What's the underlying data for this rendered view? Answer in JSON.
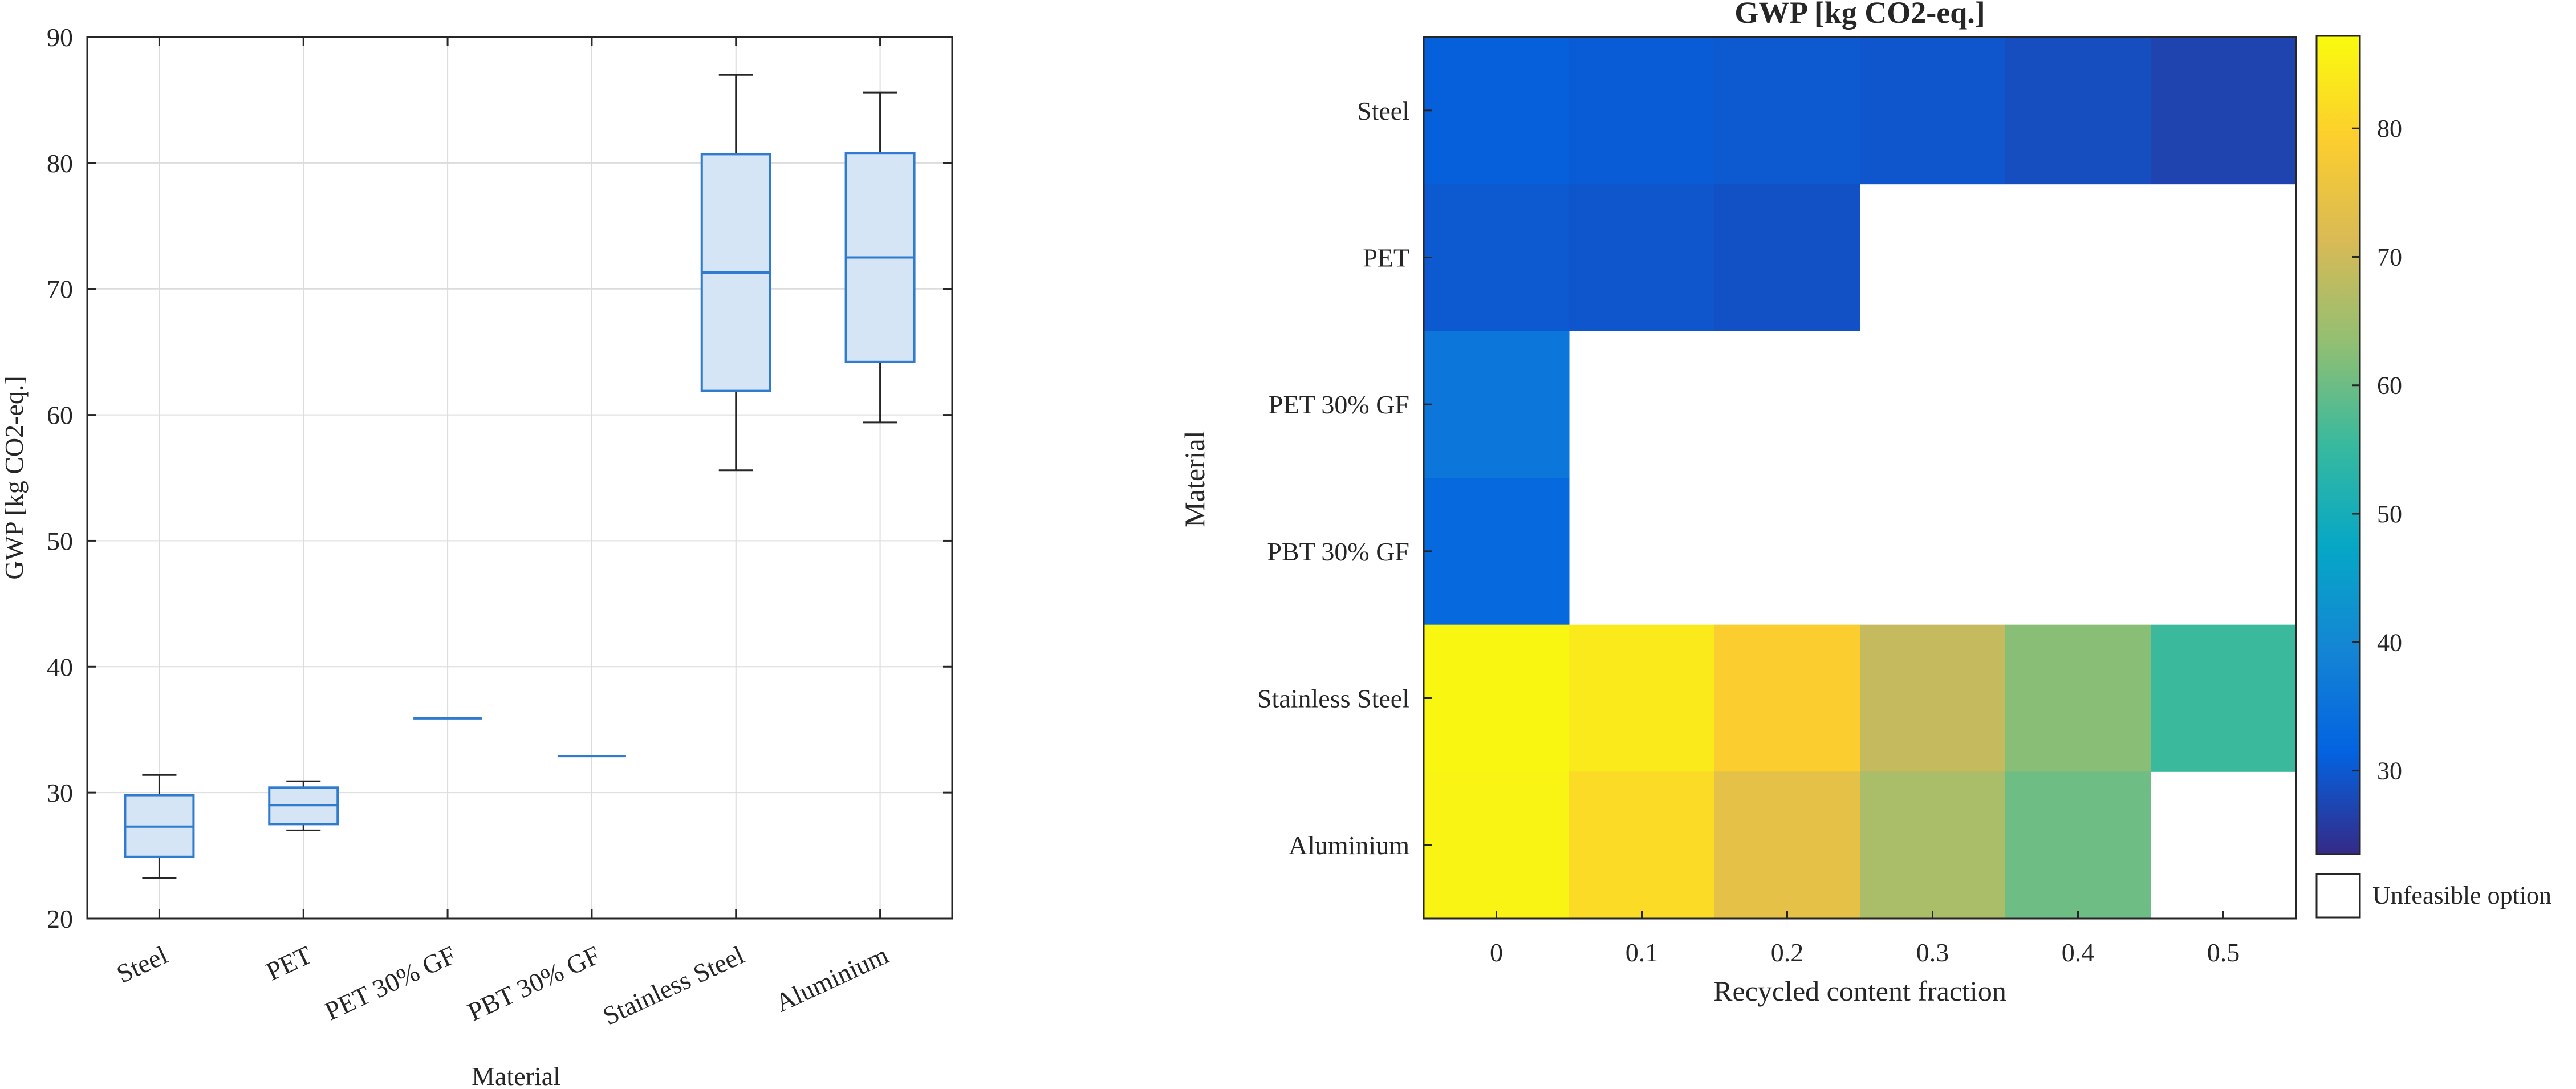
{
  "chart_data": [
    {
      "type": "box",
      "xlabel": "Material",
      "ylabel": "GWP [kg CO2-eq.]",
      "ylim": [
        20,
        90
      ],
      "yticks": [
        20,
        30,
        40,
        50,
        60,
        70,
        80,
        90
      ],
      "grid": true,
      "categories": [
        "Steel",
        "PET",
        "PET 30% GF",
        "PBT 30% GF",
        "Stainless Steel",
        "Aluminium"
      ],
      "boxes": [
        {
          "min": 23.2,
          "q1": 24.9,
          "median": 27.3,
          "q3": 29.8,
          "max": 31.4
        },
        {
          "min": 27.0,
          "q1": 27.5,
          "median": 29.0,
          "q3": 30.4,
          "max": 30.9
        },
        {
          "min": 35.9,
          "q1": 35.9,
          "median": 35.9,
          "q3": 35.9,
          "max": 35.9
        },
        {
          "min": 32.9,
          "q1": 32.9,
          "median": 32.9,
          "q3": 32.9,
          "max": 32.9
        },
        {
          "min": 55.6,
          "q1": 61.9,
          "median": 71.3,
          "q3": 80.7,
          "max": 87.0
        },
        {
          "min": 59.4,
          "q1": 64.2,
          "median": 72.5,
          "q3": 80.8,
          "max": 85.6
        }
      ],
      "colors": {
        "box_edge": "#2e7bcf",
        "box_fill": "#d6e5f5",
        "whisker": "#262626"
      }
    },
    {
      "type": "heatmap",
      "title": "GWP [kg CO2-eq.]",
      "xlabel": "Recycled content fraction",
      "ylabel": "Material",
      "x": [
        "0",
        "0.1",
        "0.2",
        "0.3",
        "0.4",
        "0.5"
      ],
      "y": [
        "Steel",
        "PET",
        "PET 30% GF",
        "PBT 30% GF",
        "Stainless Steel",
        "Aluminium"
      ],
      "values": [
        [
          31.0,
          30.5,
          30.0,
          29.5,
          28.5,
          27.0
        ],
        [
          30.0,
          29.5,
          29.0,
          null,
          null,
          null
        ],
        [
          36.0,
          null,
          null,
          null,
          null,
          null
        ],
        [
          33.0,
          null,
          null,
          null,
          null,
          null
        ],
        [
          86.5,
          84.0,
          79.0,
          69.0,
          62.5,
          55.5
        ],
        [
          86.0,
          81.5,
          74.0,
          66.0,
          60.0,
          null
        ]
      ],
      "colorbar": {
        "min": 23.5,
        "max": 87.2,
        "ticks": [
          30,
          40,
          50,
          60,
          70,
          80
        ],
        "colormap": "parula"
      },
      "legend": {
        "label": "Unfeasible option"
      }
    }
  ]
}
